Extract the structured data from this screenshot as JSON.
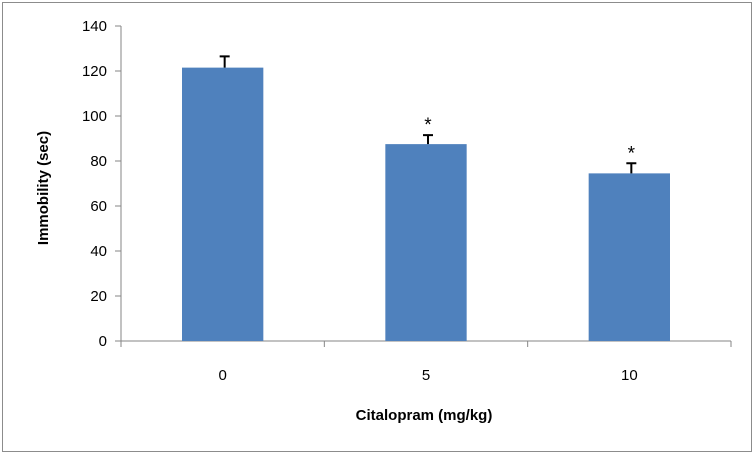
{
  "chart_data": {
    "type": "bar",
    "categories": [
      "0",
      "5",
      "10"
    ],
    "values": [
      121.5,
      87.5,
      74.5
    ],
    "errors": [
      5,
      4,
      4.5
    ],
    "annotations": [
      "",
      "*",
      "*"
    ],
    "title": "",
    "xlabel": "Citalopram (mg/kg)",
    "ylabel": "Immobility (sec)",
    "ylim": [
      0,
      140
    ],
    "yticks": [
      "0",
      "20",
      "40",
      "60",
      "80",
      "100",
      "120",
      "140"
    ],
    "grid": false,
    "bar_color": "#4F81BD"
  }
}
